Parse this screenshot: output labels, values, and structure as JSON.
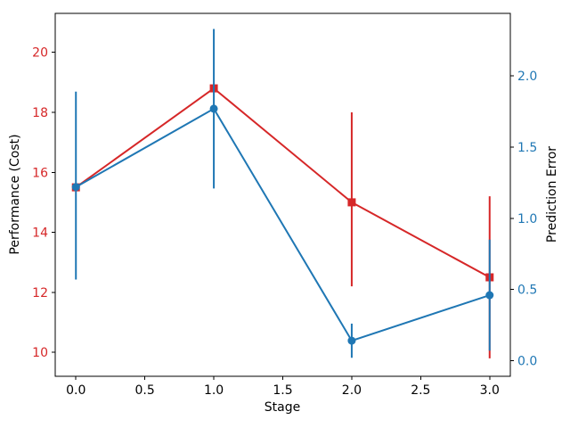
{
  "figure": {
    "background": "#ffffff",
    "title": ""
  },
  "chart_data": {
    "type": "line",
    "subtype": "errorbar-dual-axis",
    "title": "",
    "xlabel": "Stage",
    "ylabel_left": "Performance (Cost)",
    "ylabel_right": "Prediction Error",
    "x": [
      0,
      1,
      2,
      3
    ],
    "xlim": [
      -0.15,
      3.15
    ],
    "ylim_left": [
      9.2,
      21.3
    ],
    "ylim_right": [
      -0.11,
      2.44
    ],
    "grid": false,
    "legend": null,
    "axis_color": "#000000",
    "xticks": {
      "values": [
        0,
        0.5,
        1,
        1.5,
        2,
        2.5,
        3
      ],
      "labels": [
        "0.0",
        "0.5",
        "1.0",
        "1.5",
        "2.0",
        "2.5",
        "3.0"
      ],
      "color": "#000000"
    },
    "yticks_left": {
      "values": [
        10,
        12,
        14,
        16,
        18,
        20
      ],
      "labels": [
        "10",
        "12",
        "14",
        "16",
        "18",
        "20"
      ],
      "color": "#d62728"
    },
    "yticks_right": {
      "values": [
        0,
        0.5,
        1,
        1.5,
        2
      ],
      "labels": [
        "0.0",
        "0.5",
        "1.0",
        "1.5",
        "2.0"
      ],
      "color": "#1f77b4"
    },
    "series": [
      {
        "name": "Performance (Cost)",
        "axis": "left",
        "color": "#d62728",
        "marker": "square",
        "line_width": 2,
        "values": [
          15.5,
          18.8,
          15.0,
          12.5
        ],
        "error_range": [
          null,
          null,
          [
            12.2,
            18.0
          ],
          [
            9.8,
            15.2
          ]
        ]
      },
      {
        "name": "Prediction Error",
        "axis": "right",
        "color": "#1f77b4",
        "marker": "circle",
        "line_width": 2,
        "values": [
          1.22,
          1.77,
          0.14,
          0.46
        ],
        "error_range": [
          [
            0.57,
            1.89
          ],
          [
            1.21,
            2.33
          ],
          [
            0.02,
            0.26
          ],
          [
            0.07,
            0.85
          ]
        ]
      }
    ]
  }
}
